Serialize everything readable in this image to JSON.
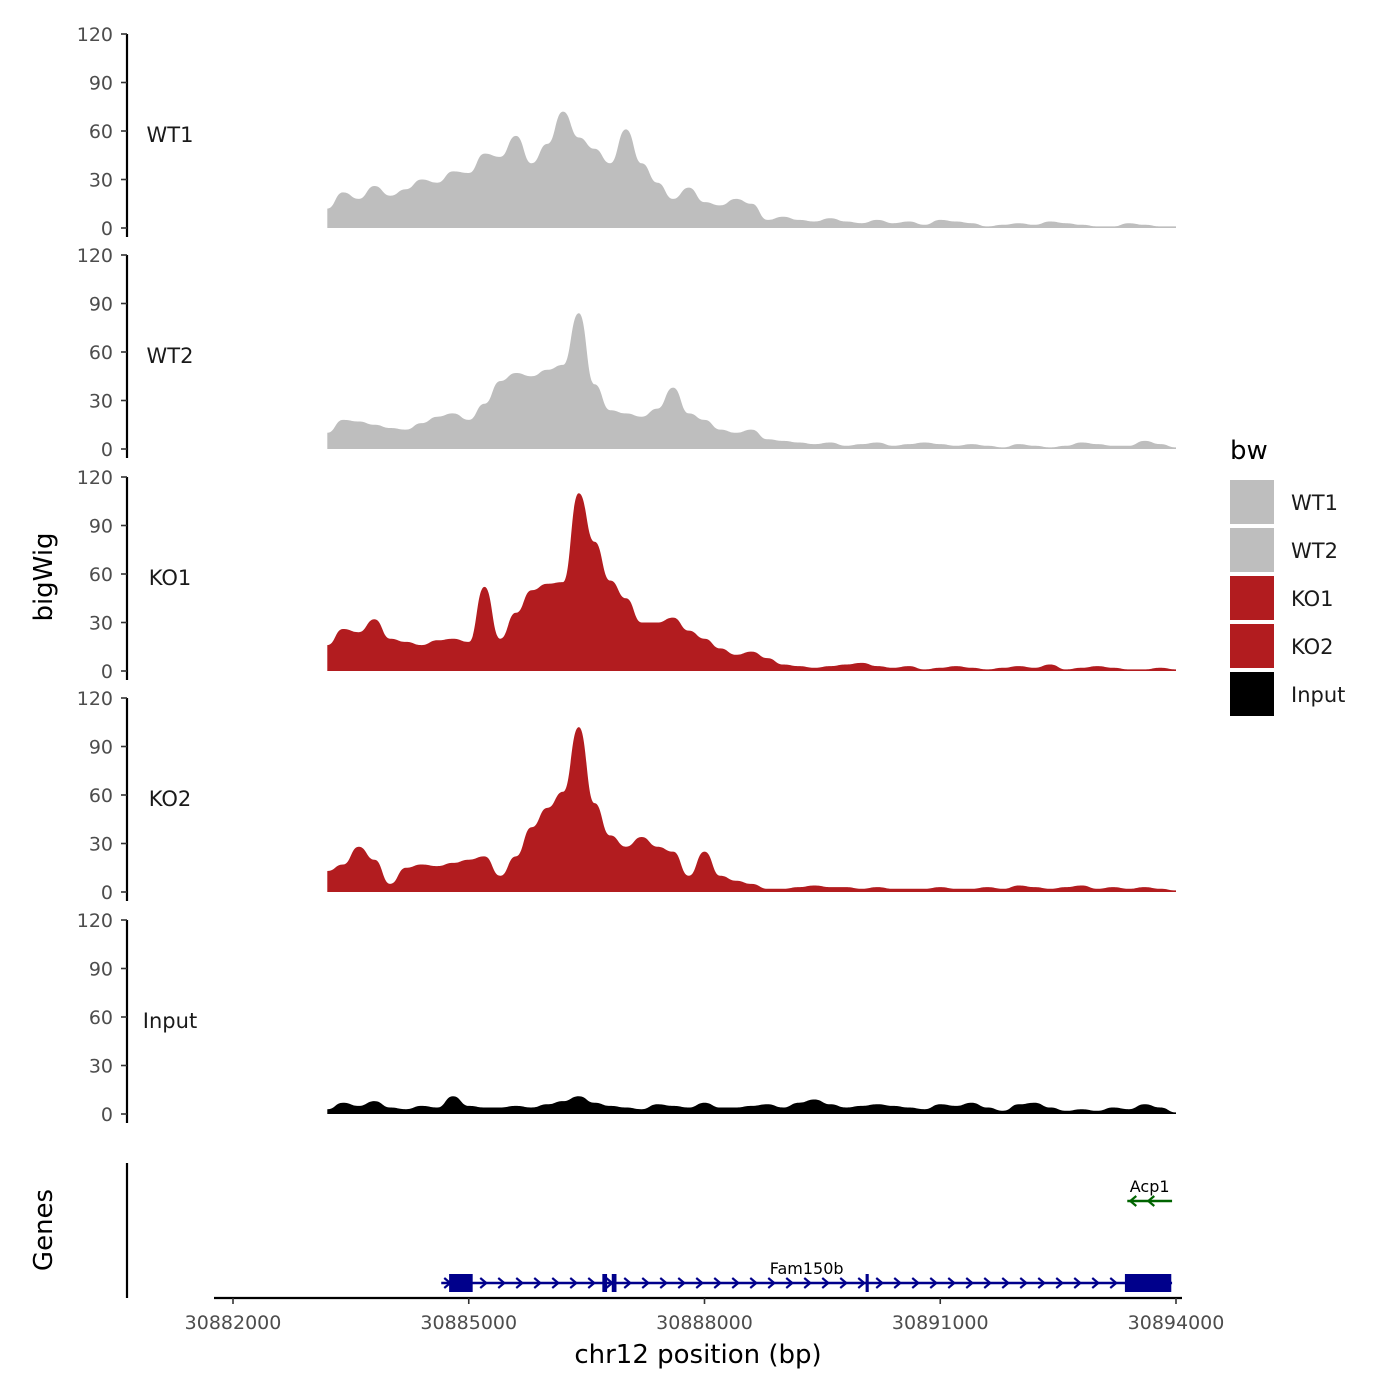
{
  "chart_data": {
    "type": "area",
    "chromosome": "chr12",
    "xlabel": "chr12 position (bp)",
    "ylabel": "bigWig",
    "genes_label": "Genes",
    "xlim": [
      30881800,
      30894300
    ],
    "x_ticks": [
      30882000,
      30885000,
      30888000,
      30891000,
      30894000
    ],
    "x_tick_labels": [
      "30882000",
      "30885000",
      "30888000",
      "30891000",
      "30894000"
    ],
    "ylim": [
      0,
      120
    ],
    "y_ticks": [
      0,
      30,
      60,
      90,
      120
    ],
    "y_tick_labels": [
      "0",
      "30",
      "60",
      "90",
      "120"
    ],
    "legend": {
      "title": "bw",
      "placement": "right",
      "entries": [
        {
          "label": "WT1",
          "color": "#bebebe"
        },
        {
          "label": "WT2",
          "color": "#bebebe"
        },
        {
          "label": "KO1",
          "color": "#b21c1f"
        },
        {
          "label": "KO2",
          "color": "#b21c1f"
        },
        {
          "label": "Input",
          "color": "#000000"
        }
      ]
    },
    "signal_x_range": [
      30883200,
      30894000
    ],
    "tracks": [
      {
        "name": "WT1",
        "color": "#bebebe",
        "x": [
          30883200,
          30883400,
          30883600,
          30883800,
          30884000,
          30884200,
          30884400,
          30884600,
          30884800,
          30885000,
          30885200,
          30885400,
          30885600,
          30885800,
          30886000,
          30886200,
          30886400,
          30886600,
          30886800,
          30887000,
          30887200,
          30887400,
          30887600,
          30887800,
          30888000,
          30888200,
          30888400,
          30888600,
          30888800,
          30889000,
          30889200,
          30889400,
          30889600,
          30889800,
          30890000,
          30890200,
          30890400,
          30890600,
          30890800,
          30891000,
          30891200,
          30891400,
          30891600,
          30891800,
          30892000,
          30892200,
          30892400,
          30892600,
          30892800,
          30893000,
          30893200,
          30893400,
          30893600,
          30893800,
          30894000
        ],
        "values": [
          12,
          22,
          18,
          26,
          20,
          24,
          30,
          28,
          35,
          34,
          46,
          44,
          57,
          40,
          52,
          72,
          56,
          49,
          40,
          61,
          40,
          28,
          18,
          25,
          16,
          14,
          18,
          15,
          5,
          7,
          5,
          4,
          6,
          4,
          3,
          5,
          3,
          4,
          2,
          5,
          4,
          3,
          1,
          2,
          3,
          2,
          4,
          3,
          2,
          1,
          1,
          3,
          2,
          1,
          1
        ]
      },
      {
        "name": "WT2",
        "color": "#bebebe",
        "x": [
          30883200,
          30883400,
          30883600,
          30883800,
          30884000,
          30884200,
          30884400,
          30884600,
          30884800,
          30885000,
          30885200,
          30885400,
          30885600,
          30885800,
          30886000,
          30886200,
          30886400,
          30886600,
          30886800,
          30887000,
          30887200,
          30887400,
          30887600,
          30887800,
          30888000,
          30888200,
          30888400,
          30888600,
          30888800,
          30889000,
          30889200,
          30889400,
          30889600,
          30889800,
          30890000,
          30890200,
          30890400,
          30890600,
          30890800,
          30891000,
          30891200,
          30891400,
          30891600,
          30891800,
          30892000,
          30892200,
          30892400,
          30892600,
          30892800,
          30893000,
          30893200,
          30893400,
          30893600,
          30893800,
          30894000
        ],
        "values": [
          10,
          18,
          17,
          15,
          13,
          12,
          16,
          20,
          22,
          18,
          28,
          42,
          47,
          45,
          49,
          52,
          84,
          40,
          24,
          22,
          20,
          25,
          38,
          22,
          18,
          12,
          10,
          12,
          6,
          5,
          4,
          3,
          4,
          2,
          3,
          4,
          2,
          3,
          4,
          3,
          2,
          3,
          2,
          1,
          3,
          2,
          1,
          2,
          4,
          3,
          2,
          2,
          5,
          3,
          1
        ]
      },
      {
        "name": "KO1",
        "color": "#b21c1f",
        "x": [
          30883200,
          30883400,
          30883600,
          30883800,
          30884000,
          30884200,
          30884400,
          30884600,
          30884800,
          30885000,
          30885200,
          30885400,
          30885600,
          30885800,
          30886000,
          30886200,
          30886400,
          30886600,
          30886800,
          30887000,
          30887200,
          30887400,
          30887600,
          30887800,
          30888000,
          30888200,
          30888400,
          30888600,
          30888800,
          30889000,
          30889200,
          30889400,
          30889600,
          30889800,
          30890000,
          30890200,
          30890400,
          30890600,
          30890800,
          30891000,
          30891200,
          30891400,
          30891600,
          30891800,
          30892000,
          30892200,
          30892400,
          30892600,
          30892800,
          30893000,
          30893200,
          30893400,
          30893600,
          30893800,
          30894000
        ],
        "values": [
          16,
          26,
          24,
          32,
          20,
          18,
          16,
          19,
          20,
          18,
          52,
          20,
          36,
          50,
          54,
          55,
          110,
          80,
          56,
          45,
          30,
          30,
          33,
          25,
          20,
          14,
          10,
          12,
          8,
          4,
          3,
          2,
          3,
          4,
          5,
          3,
          2,
          3,
          1,
          2,
          3,
          2,
          1,
          2,
          3,
          2,
          4,
          1,
          2,
          3,
          2,
          1,
          1,
          2,
          1
        ]
      },
      {
        "name": "KO2",
        "color": "#b21c1f",
        "x": [
          30883200,
          30883400,
          30883600,
          30883800,
          30884000,
          30884200,
          30884400,
          30884600,
          30884800,
          30885000,
          30885200,
          30885400,
          30885600,
          30885800,
          30886000,
          30886200,
          30886400,
          30886600,
          30886800,
          30887000,
          30887200,
          30887400,
          30887600,
          30887800,
          30888000,
          30888200,
          30888400,
          30888600,
          30888800,
          30889000,
          30889200,
          30889400,
          30889600,
          30889800,
          30890000,
          30890200,
          30890400,
          30890600,
          30890800,
          30891000,
          30891200,
          30891400,
          30891600,
          30891800,
          30892000,
          30892200,
          30892400,
          30892600,
          30892800,
          30893000,
          30893200,
          30893400,
          30893600,
          30893800,
          30894000
        ],
        "values": [
          13,
          17,
          28,
          20,
          5,
          15,
          17,
          16,
          18,
          20,
          22,
          10,
          22,
          40,
          52,
          62,
          102,
          55,
          35,
          28,
          34,
          28,
          25,
          10,
          25,
          10,
          7,
          5,
          2,
          2,
          3,
          4,
          3,
          3,
          2,
          3,
          2,
          2,
          2,
          3,
          2,
          2,
          3,
          2,
          4,
          3,
          2,
          3,
          4,
          2,
          3,
          2,
          3,
          2,
          1
        ]
      },
      {
        "name": "Input",
        "color": "#000000",
        "x": [
          30883200,
          30883400,
          30883600,
          30883800,
          30884000,
          30884200,
          30884400,
          30884600,
          30884800,
          30885000,
          30885200,
          30885400,
          30885600,
          30885800,
          30886000,
          30886200,
          30886400,
          30886600,
          30886800,
          30887000,
          30887200,
          30887400,
          30887600,
          30887800,
          30888000,
          30888200,
          30888400,
          30888600,
          30888800,
          30889000,
          30889200,
          30889400,
          30889600,
          30889800,
          30890000,
          30890200,
          30890400,
          30890600,
          30890800,
          30891000,
          30891200,
          30891400,
          30891600,
          30891800,
          30892000,
          30892200,
          30892400,
          30892600,
          30892800,
          30893000,
          30893200,
          30893400,
          30893600,
          30893800,
          30894000
        ],
        "values": [
          3,
          7,
          5,
          8,
          4,
          3,
          5,
          4,
          11,
          5,
          4,
          4,
          5,
          4,
          6,
          8,
          11,
          7,
          5,
          4,
          3,
          6,
          5,
          4,
          7,
          4,
          4,
          5,
          6,
          4,
          7,
          9,
          6,
          4,
          5,
          6,
          5,
          4,
          3,
          6,
          5,
          7,
          4,
          2,
          6,
          7,
          4,
          2,
          3,
          2,
          4,
          3,
          6,
          4,
          1
        ]
      }
    ],
    "genes": [
      {
        "name": "Fam150b",
        "strand": "+",
        "color": "#00008b",
        "start": 30884650,
        "end": 30893950,
        "exons": [
          [
            30884750,
            30885050
          ],
          [
            30886700,
            30886760
          ],
          [
            30886820,
            30886880
          ],
          [
            30890050,
            30890090
          ],
          [
            30893350,
            30893940
          ]
        ]
      },
      {
        "name": "Acp1",
        "strand": "-",
        "color": "#006400",
        "start": 30893380,
        "end": 30893950,
        "exons": []
      }
    ]
  }
}
